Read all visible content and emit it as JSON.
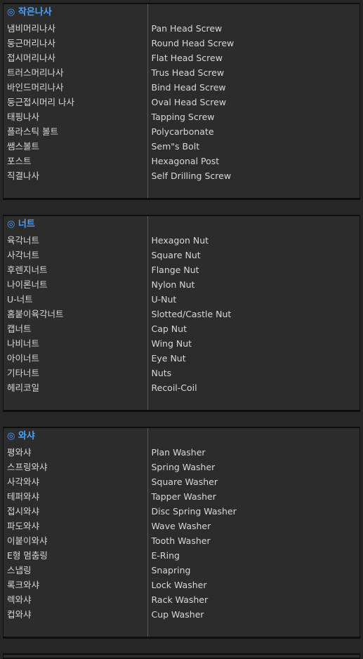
{
  "sections": [
    {
      "title": "◎ 작은나사",
      "items": [
        {
          "ko": "냄비머리나사",
          "en": "Pan Head Screw"
        },
        {
          "ko": "둥근머리나사",
          "en": "Round Head Screw"
        },
        {
          "ko": "접시머리나사",
          "en": "Flat Head Screw"
        },
        {
          "ko": "트러스머리나사",
          "en": "Trus Head Screw"
        },
        {
          "ko": "바인드머리나사",
          "en": "Bind Head Screw"
        },
        {
          "ko": "둥근접시머리 나사",
          "en": "Oval Head Screw"
        },
        {
          "ko": "태핑나사",
          "en": "Tapping Screw"
        },
        {
          "ko": "플라스틱 볼트",
          "en": "Polycarbonate"
        },
        {
          "ko": "쌤스볼트",
          "en": "Sem\"s Bolt"
        },
        {
          "ko": "포스트",
          "en": "Hexagonal Post"
        },
        {
          "ko": "직결나사",
          "en": "Self Drilling Screw"
        }
      ]
    },
    {
      "title": "◎ 너트",
      "items": [
        {
          "ko": "육각너트",
          "en": "Hexagon Nut"
        },
        {
          "ko": "사각너트",
          "en": "Square Nut"
        },
        {
          "ko": "후렌지너트",
          "en": "Flange Nut"
        },
        {
          "ko": "나이론너트",
          "en": "Nylon Nut"
        },
        {
          "ko": "U-너트",
          "en": "U-Nut"
        },
        {
          "ko": "홈붙이육각너트",
          "en": "Slotted/Castle Nut"
        },
        {
          "ko": "캡너트",
          "en": "Cap Nut"
        },
        {
          "ko": "나비너트",
          "en": "Wing Nut"
        },
        {
          "ko": "아이너트",
          "en": "Eye Nut"
        },
        {
          "ko": "기타너트",
          "en": "Nuts"
        },
        {
          "ko": "헤리코일",
          "en": "Recoil-Coil"
        }
      ]
    },
    {
      "title": "◎ 와샤",
      "items": [
        {
          "ko": "평와샤",
          "en": "Plan Washer"
        },
        {
          "ko": "스프링와샤",
          "en": "Spring Washer"
        },
        {
          "ko": "사각와샤",
          "en": "Square Washer"
        },
        {
          "ko": "테퍼와샤",
          "en": "Tapper Washer"
        },
        {
          "ko": "접시와샤",
          "en": "Disc Spring Washer"
        },
        {
          "ko": "파도와샤",
          "en": "Wave Washer"
        },
        {
          "ko": "이붙이와샤",
          "en": "Tooth Washer"
        },
        {
          "ko": "E형 멈춤링",
          "en": "E-Ring"
        },
        {
          "ko": "스냅링",
          "en": "Snapring"
        },
        {
          "ko": "록크와샤",
          "en": "Lock Washer"
        },
        {
          "ko": "렉와샤",
          "en": "Rack Washer"
        },
        {
          "ko": "컵와샤",
          "en": "Cup Washer"
        }
      ]
    }
  ]
}
